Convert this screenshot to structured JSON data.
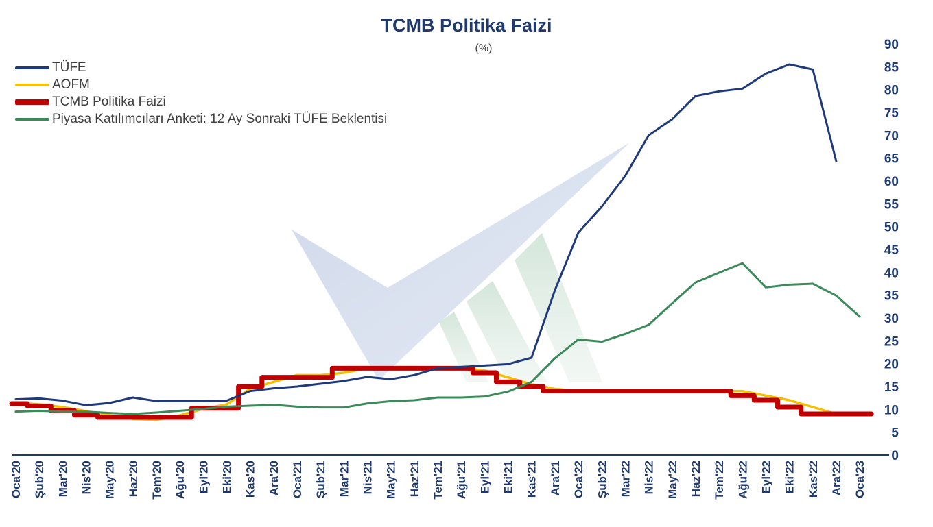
{
  "chart_data": {
    "type": "line",
    "title": "TCMB Politika Faizi",
    "subtitle": "(%)",
    "xlabel": "",
    "ylabel": "",
    "ylim": [
      0,
      90
    ],
    "yticks": [
      0,
      5,
      10,
      15,
      20,
      25,
      30,
      35,
      40,
      45,
      50,
      55,
      60,
      65,
      70,
      75,
      80,
      85,
      90
    ],
    "y_axis_position": "right",
    "grid": false,
    "legend_position": "top-left",
    "x_tick_labels": [
      "Oca'20",
      "Şub'20",
      "Mar'20",
      "Nis'20",
      "May'20",
      "Haz'20",
      "Tem'20",
      "Ağu'20",
      "Eyl'20",
      "Eki'20",
      "Kas'20",
      "Ara'20",
      "Oca'21",
      "Şub'21",
      "Mar'21",
      "Nis'21",
      "May'21",
      "Haz'21",
      "Tem'21",
      "Ağu'21",
      "Eyl'21",
      "Eki'21",
      "Kas'21",
      "Ara'21",
      "Oca'22",
      "Şub'22",
      "Mar'22",
      "Nis'22",
      "May'22",
      "Haz'22",
      "Tem'22",
      "Ağu'22",
      "Eyl'22",
      "Eki'22",
      "Kas'22",
      "Ara'22",
      "Oca'23"
    ],
    "series": [
      {
        "name": "TÜFE",
        "color": "#1f3a7a",
        "style": "line",
        "values": [
          12.2,
          12.4,
          11.9,
          10.9,
          11.4,
          12.6,
          11.8,
          11.8,
          11.8,
          11.9,
          14.0,
          14.6,
          15.0,
          15.6,
          16.2,
          17.1,
          16.6,
          17.5,
          19.0,
          19.3,
          19.6,
          19.9,
          21.3,
          36.1,
          48.7,
          54.4,
          61.1,
          70.0,
          73.5,
          78.6,
          79.6,
          80.2,
          83.5,
          85.5,
          84.4,
          64.3,
          null
        ]
      },
      {
        "name": "AOFM",
        "color": "#f5c000",
        "style": "line",
        "values": [
          11.5,
          11.1,
          10.5,
          9.6,
          8.7,
          7.9,
          7.7,
          8.7,
          10.1,
          11.1,
          14.5,
          16.0,
          17.5,
          17.5,
          18.0,
          19.0,
          19.0,
          19.0,
          19.0,
          19.0,
          18.5,
          17.0,
          15.5,
          14.5,
          14.0,
          14.0,
          14.0,
          14.0,
          14.0,
          14.0,
          14.0,
          14.0,
          13.0,
          12.0,
          10.5,
          9.0,
          9.0
        ]
      },
      {
        "name": "TCMB Politika Faizi",
        "color": "#c00000",
        "style": "step",
        "values": [
          11.25,
          10.75,
          9.75,
          8.75,
          8.25,
          8.25,
          8.25,
          8.25,
          10.25,
          10.25,
          15.0,
          17.0,
          17.0,
          17.0,
          19.0,
          19.0,
          19.0,
          19.0,
          19.0,
          19.0,
          18.0,
          16.0,
          15.0,
          14.0,
          14.0,
          14.0,
          14.0,
          14.0,
          14.0,
          14.0,
          14.0,
          13.0,
          12.0,
          10.5,
          9.0,
          9.0,
          9.0
        ]
      },
      {
        "name": "Piyasa Katılımcıları Anketi: 12 Ay Sonraki TÜFE Beklentisi",
        "color": "#3a8a5a",
        "style": "line",
        "values": [
          9.5,
          9.7,
          9.5,
          9.5,
          9.2,
          9.0,
          9.3,
          9.7,
          10.1,
          10.6,
          10.8,
          11.0,
          10.6,
          10.4,
          10.4,
          11.3,
          11.8,
          12.0,
          12.6,
          12.6,
          12.8,
          13.9,
          16.0,
          21.2,
          25.3,
          24.8,
          26.5,
          28.5,
          33.2,
          37.8,
          39.9,
          42.0,
          36.7,
          37.3,
          37.5,
          34.9,
          30.3
        ]
      }
    ]
  }
}
